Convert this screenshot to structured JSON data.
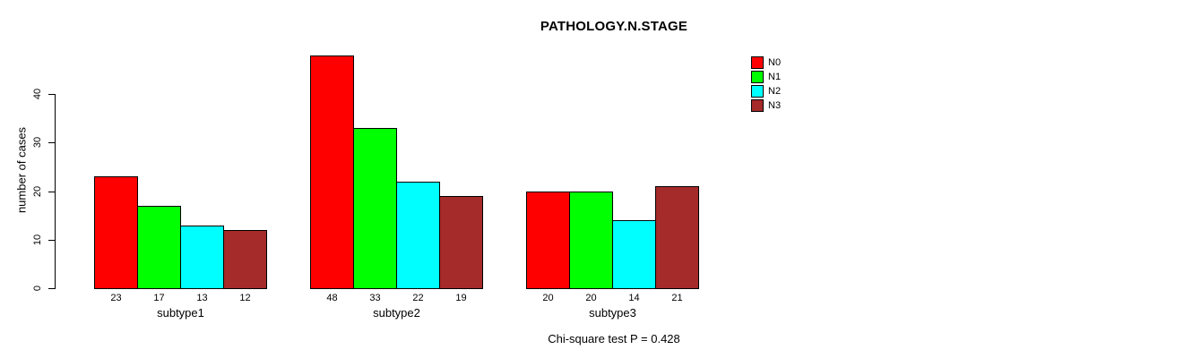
{
  "chart": {
    "title": "PATHOLOGY.N.STAGE",
    "ylabel": "number of cases",
    "footer": "Chi-square test P = 0.428"
  },
  "chart_data": {
    "type": "bar",
    "title": "PATHOLOGY.N.STAGE",
    "xlabel": "",
    "ylabel": "number of cases",
    "categories": [
      "subtype1",
      "subtype2",
      "subtype3"
    ],
    "series": [
      {
        "name": "N0",
        "color": "#FF0000",
        "values": [
          23,
          48,
          20
        ]
      },
      {
        "name": "N1",
        "color": "#00FF00",
        "values": [
          17,
          33,
          20
        ]
      },
      {
        "name": "N2",
        "color": "#00FFFF",
        "values": [
          13,
          22,
          14
        ]
      },
      {
        "name": "N3",
        "color": "#A52A2A",
        "values": [
          12,
          19,
          21
        ]
      }
    ],
    "bar_value_labels": {
      "subtype1": [
        23,
        17,
        13,
        12
      ],
      "subtype2": [
        48,
        33,
        22,
        19
      ],
      "subtype3": [
        20,
        20,
        14,
        21
      ]
    },
    "ylim": [
      0,
      48
    ],
    "yticks": [
      0,
      10,
      20,
      30,
      40
    ],
    "grid": false,
    "legend_position": "top-right",
    "legend_entries": [
      "N0",
      "N1",
      "N2",
      "N3"
    ],
    "annotation": "Chi-square test P = 0.428"
  }
}
